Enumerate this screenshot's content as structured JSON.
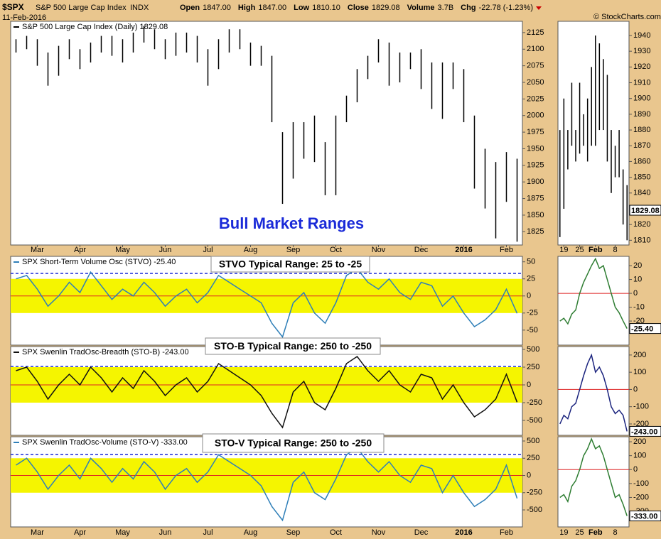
{
  "header": {
    "symbol": "$SPX",
    "name": "S&P 500 Large Cap Index",
    "exchange": "INDX",
    "date": "11-Feb-2016",
    "stats": [
      {
        "label": "Open",
        "value": "1847.00"
      },
      {
        "label": "High",
        "value": "1847.00"
      },
      {
        "label": "Low",
        "value": "1810.10"
      },
      {
        "label": "Close",
        "value": "1829.08"
      },
      {
        "label": "Volume",
        "value": "3.7B"
      },
      {
        "label": "Chg",
        "value": "-22.78 (-1.23%)"
      }
    ],
    "credit": "© StockCharts.com"
  },
  "chart_data": [
    {
      "type": "range_bar",
      "legend": "S&P 500 Large Cap Index (Daily) 1829.08",
      "annotation": "Bull Market Ranges",
      "color": "#000000",
      "categories": [
        null,
        null,
        "Mar",
        null,
        null,
        null,
        "Apr",
        null,
        null,
        null,
        "May",
        null,
        null,
        null,
        "Jun",
        null,
        null,
        null,
        "Jul",
        null,
        null,
        null,
        "Aug",
        null,
        null,
        null,
        "Sep",
        null,
        null,
        null,
        "Oct",
        null,
        null,
        null,
        "Nov",
        null,
        null,
        null,
        "Dec",
        null,
        null,
        null,
        "2016",
        null,
        null,
        null,
        "Feb",
        null
      ],
      "high": [
        2115,
        2120,
        2115,
        2095,
        2105,
        2115,
        2100,
        2110,
        2120,
        2120,
        2115,
        2125,
        2135,
        2130,
        2115,
        2125,
        2125,
        2120,
        2100,
        2115,
        2130,
        2130,
        2110,
        2105,
        2090,
        1975,
        1990,
        1990,
        2000,
        1960,
        2000,
        2030,
        2070,
        2090,
        2115,
        2110,
        2095,
        2095,
        2100,
        2080,
        2080,
        2080,
        2070,
        2000,
        1950,
        1930,
        1945,
        1935
      ],
      "low": [
        2095,
        2100,
        2075,
        2045,
        2060,
        2085,
        2070,
        2080,
        2095,
        2090,
        2080,
        2095,
        2110,
        2100,
        2085,
        2090,
        2095,
        2080,
        2045,
        2070,
        2095,
        2100,
        2075,
        2075,
        1990,
        1867,
        1905,
        1935,
        1930,
        1880,
        1880,
        1990,
        2020,
        2055,
        2080,
        2045,
        2050,
        2070,
        2040,
        2010,
        1995,
        2040,
        1990,
        1890,
        1860,
        1815,
        1870,
        1810
      ],
      "ylim": [
        1805,
        2142
      ],
      "yticks": [
        1825,
        1850,
        1875,
        1900,
        1925,
        1950,
        1975,
        2000,
        2025,
        2050,
        2075,
        2100,
        2125
      ]
    },
    {
      "type": "line",
      "legend": "SPX Short-Term Volume Osc (STVO) -25.40",
      "annotation": "STVO Typical Range: 25 to -25",
      "color": "#2f7fb8",
      "band": [
        -25,
        25
      ],
      "zero": 0,
      "dashed": 33,
      "values": [
        25,
        30,
        10,
        -15,
        0,
        20,
        5,
        35,
        15,
        -5,
        10,
        0,
        20,
        5,
        -15,
        0,
        10,
        -10,
        5,
        30,
        20,
        10,
        0,
        -10,
        -40,
        -60,
        -10,
        5,
        -25,
        -40,
        -10,
        30,
        40,
        20,
        10,
        25,
        5,
        -5,
        20,
        15,
        -15,
        0,
        -25,
        -45,
        -35,
        -20,
        10,
        -25.4
      ],
      "ylim": [
        -72,
        58
      ],
      "yticks": [
        -50,
        -25,
        0,
        25,
        50
      ]
    },
    {
      "type": "line",
      "legend": "SPX Swenlin TradOsc-Breadth (STO-B) -243.00",
      "annotation": "STO-B Typical Range: 250 to -250",
      "color": "#111111",
      "band": [
        -250,
        250
      ],
      "zero": 0,
      "dashed": 260,
      "values": [
        200,
        250,
        50,
        -200,
        0,
        150,
        0,
        250,
        100,
        -100,
        100,
        -50,
        200,
        50,
        -150,
        0,
        100,
        -100,
        50,
        300,
        200,
        100,
        0,
        -150,
        -400,
        -600,
        -100,
        50,
        -250,
        -350,
        -50,
        300,
        400,
        200,
        50,
        200,
        0,
        -100,
        150,
        100,
        -200,
        0,
        -250,
        -450,
        -350,
        -200,
        150,
        -243
      ],
      "ylim": [
        -710,
        540
      ],
      "yticks": [
        -500,
        -250,
        0,
        250,
        500
      ]
    },
    {
      "type": "line",
      "legend": "SPX Swenlin TradOsc-Volume (STO-V) -333.00",
      "annotation": "STO-V Typical Range: 250 to -250",
      "color": "#2f7fb8",
      "band": [
        -250,
        250
      ],
      "zero": 0,
      "dashed": 304,
      "values": [
        150,
        250,
        50,
        -200,
        0,
        150,
        -50,
        250,
        100,
        -100,
        100,
        -50,
        200,
        50,
        -200,
        0,
        100,
        -100,
        50,
        300,
        200,
        100,
        0,
        -150,
        -450,
        -650,
        -100,
        50,
        -250,
        -350,
        -50,
        300,
        400,
        200,
        50,
        200,
        0,
        -100,
        150,
        100,
        -250,
        0,
        -250,
        -450,
        -350,
        -200,
        150,
        -333
      ],
      "ylim": [
        -747,
        562
      ],
      "yticks": [
        -500,
        -250,
        0,
        250,
        500
      ]
    },
    {
      "type": "range_bar",
      "color": "#000000",
      "value_label": "1829.08",
      "last": 1829.08,
      "categories": [
        null,
        "19",
        null,
        null,
        null,
        "25",
        null,
        null,
        null,
        "Feb",
        null,
        null,
        null,
        null,
        "8",
        null,
        null,
        null
      ],
      "high": [
        1880,
        1900,
        1880,
        1910,
        1880,
        1910,
        1890,
        1900,
        1920,
        1940,
        1935,
        1925,
        1915,
        1880,
        1870,
        1880,
        1855,
        1845
      ],
      "low": [
        1812,
        1830,
        1855,
        1870,
        1860,
        1865,
        1870,
        1860,
        1870,
        1870,
        1880,
        1880,
        1860,
        1840,
        1850,
        1850,
        1820,
        1810
      ],
      "ylim": [
        1807,
        1949
      ],
      "yticks": [
        1810,
        1820,
        1840,
        1850,
        1860,
        1870,
        1880,
        1890,
        1900,
        1910,
        1920,
        1930,
        1940
      ]
    },
    {
      "type": "line",
      "color": "#2e7d32",
      "zero": 0,
      "value_label": "-25.40",
      "values": [
        -20,
        -18,
        -22,
        -15,
        -12,
        0,
        8,
        14,
        20,
        25,
        18,
        20,
        10,
        0,
        -10,
        -14,
        -20,
        -25.4
      ],
      "ylim": [
        -37.4,
        26.7
      ],
      "yticks": [
        -20,
        -10,
        0,
        10,
        20
      ]
    },
    {
      "type": "line",
      "color": "#1a237e",
      "zero": 0,
      "value_label": "-243.00",
      "values": [
        -200,
        -150,
        -170,
        -100,
        -80,
        0,
        80,
        150,
        200,
        100,
        130,
        80,
        0,
        -100,
        -140,
        -120,
        -150,
        -243
      ],
      "ylim": [
        -266,
        249
      ],
      "yticks": [
        -200,
        -100,
        0,
        100,
        200
      ]
    },
    {
      "type": "line",
      "color": "#2e7d32",
      "zero": 0,
      "value_label": "-333.00",
      "values": [
        -200,
        -180,
        -230,
        -120,
        -80,
        0,
        100,
        150,
        220,
        150,
        170,
        100,
        0,
        -100,
        -200,
        -180,
        -250,
        -333
      ],
      "ylim": [
        -412,
        236
      ],
      "yticks": [
        -300,
        -200,
        -100,
        0,
        100,
        200
      ]
    }
  ]
}
